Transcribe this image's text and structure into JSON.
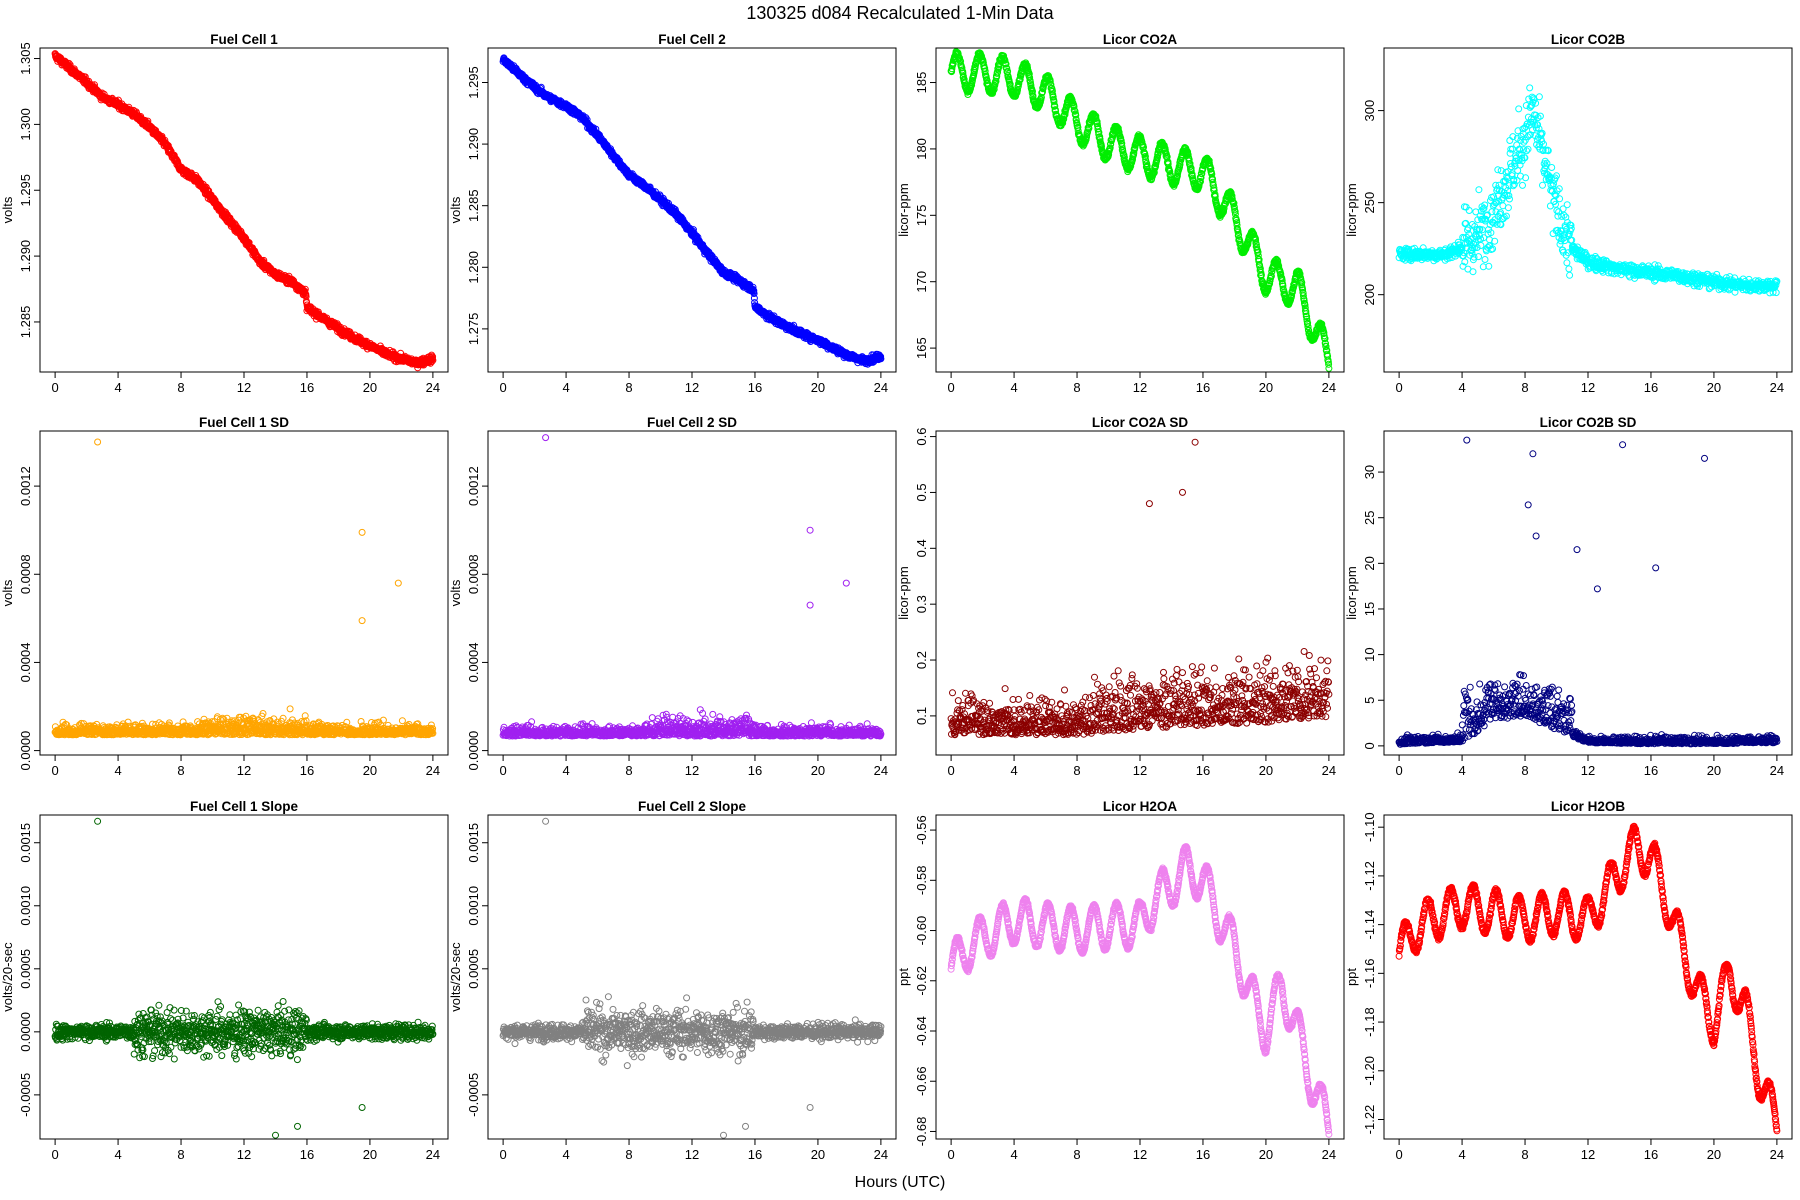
{
  "page": {
    "title": "130325   d084   Recalculated 1-Min Data",
    "x_axis_label": "Hours (UTC)"
  },
  "chart_data": [
    {
      "id": "fc1",
      "type": "scatter",
      "title": "Fuel Cell 1",
      "ylabel": "volts",
      "color": "#FF0000",
      "xlim": [
        -0.96,
        24.96
      ],
      "ylim": [
        1.2812,
        1.3058
      ],
      "x_ticks": [
        0,
        4,
        8,
        12,
        16,
        20,
        24
      ],
      "x_tick_labels": [
        "0",
        "4",
        "8",
        "12",
        "16",
        "20",
        "24"
      ],
      "y_ticks": [
        1.285,
        1.29,
        1.295,
        1.3,
        1.305
      ],
      "y_tick_labels": [
        "1.285",
        "1.290",
        "1.295",
        "1.300",
        "1.305"
      ],
      "series": [
        {
          "name": "Fuel Cell 1",
          "x": [
            0,
            1,
            2,
            3,
            4,
            5,
            6,
            7,
            8,
            9,
            10,
            11,
            12,
            13,
            14,
            15,
            15.9,
            16,
            17,
            18,
            19,
            20,
            21,
            22,
            23,
            24
          ],
          "y": [
            1.3052,
            1.3042,
            1.3032,
            1.3021,
            1.3015,
            1.3008,
            1.2998,
            1.2985,
            1.2966,
            1.2958,
            1.2943,
            1.2928,
            1.2914,
            1.2896,
            1.2886,
            1.2881,
            1.2872,
            1.2861,
            1.2853,
            1.2845,
            1.2838,
            1.2832,
            1.2826,
            1.2822,
            1.2819,
            1.2822
          ]
        }
      ]
    },
    {
      "id": "fc2",
      "type": "scatter",
      "title": "Fuel Cell 2",
      "ylabel": "volts",
      "color": "#0000FF",
      "xlim": [
        -0.96,
        24.96
      ],
      "ylim": [
        1.2715,
        1.2978
      ],
      "x_ticks": [
        0,
        4,
        8,
        12,
        16,
        20,
        24
      ],
      "x_tick_labels": [
        "0",
        "4",
        "8",
        "12",
        "16",
        "20",
        "24"
      ],
      "y_ticks": [
        1.275,
        1.28,
        1.285,
        1.29,
        1.295
      ],
      "y_tick_labels": [
        "1.275",
        "1.280",
        "1.285",
        "1.290",
        "1.295"
      ],
      "series": [
        {
          "name": "Fuel Cell 2",
          "x": [
            0,
            1,
            2,
            3,
            4,
            5,
            6,
            7,
            8,
            9,
            10,
            11,
            12,
            13,
            14,
            15,
            15.9,
            16,
            17,
            18,
            19,
            20,
            21,
            22,
            23,
            24
          ],
          "y": [
            1.2969,
            1.2957,
            1.2946,
            1.2937,
            1.2931,
            1.2922,
            1.2907,
            1.2891,
            1.2875,
            1.2866,
            1.2855,
            1.2843,
            1.2828,
            1.2811,
            1.2796,
            1.2789,
            1.2782,
            1.2768,
            1.2759,
            1.2752,
            1.2746,
            1.2741,
            1.2734,
            1.2728,
            1.2724,
            1.2728
          ]
        }
      ]
    },
    {
      "id": "co2a",
      "type": "scatter",
      "title": "Licor CO2A",
      "ylabel": "licor-ppm",
      "color": "#00EE00",
      "xlim": [
        -0.96,
        24.96
      ],
      "ylim": [
        163.2,
        187.6
      ],
      "x_ticks": [
        0,
        4,
        8,
        12,
        16,
        20,
        24
      ],
      "x_tick_labels": [
        "0",
        "4",
        "8",
        "12",
        "16",
        "20",
        "24"
      ],
      "y_ticks": [
        165,
        170,
        175,
        180,
        185
      ],
      "y_tick_labels": [
        "165",
        "170",
        "175",
        "180",
        "185"
      ],
      "series": [
        {
          "name": "Licor CO2A",
          "x": [
            0,
            2,
            4,
            6,
            8,
            10,
            12,
            14,
            16,
            18,
            20,
            22,
            24
          ],
          "y": [
            185.8,
            185.7,
            185.4,
            184.2,
            182.0,
            180.5,
            179.5,
            178.8,
            178.3,
            174.8,
            170.5,
            169.5,
            164.0
          ]
        }
      ]
    },
    {
      "id": "co2b",
      "type": "scatter",
      "title": "Licor CO2B",
      "ylabel": "licor-ppm",
      "color": "#00FFFF",
      "xlim": [
        -0.96,
        24.96
      ],
      "ylim": [
        158,
        334
      ],
      "x_ticks": [
        0,
        4,
        8,
        12,
        16,
        20,
        24
      ],
      "x_tick_labels": [
        "0",
        "4",
        "8",
        "12",
        "16",
        "20",
        "24"
      ],
      "y_ticks": [
        200,
        250,
        300
      ],
      "y_tick_labels": [
        "200",
        "250",
        "300"
      ],
      "series": [
        {
          "name": "Licor CO2B",
          "x": [
            0,
            2,
            3,
            4,
            5,
            6,
            7,
            8,
            8.5,
            9,
            10,
            11,
            12,
            14,
            16,
            18,
            20,
            22,
            24
          ],
          "y": [
            222,
            222,
            222,
            226,
            232,
            245,
            265,
            285,
            300,
            280,
            245,
            225,
            218,
            214,
            212,
            210,
            207,
            205,
            205
          ]
        }
      ]
    },
    {
      "id": "fc1sd",
      "type": "scatter",
      "title": "Fuel Cell 1 SD",
      "ylabel": "volts",
      "color": "#FFA500",
      "xlim": [
        -0.96,
        24.96
      ],
      "ylim": [
        -2e-05,
        0.00145
      ],
      "x_ticks": [
        0,
        4,
        8,
        12,
        16,
        20,
        24
      ],
      "x_tick_labels": [
        "0",
        "4",
        "8",
        "12",
        "16",
        "20",
        "24"
      ],
      "y_ticks": [
        0,
        0.0004,
        0.0008,
        0.0012
      ],
      "y_tick_labels": [
        "0.0000",
        "0.0004",
        "0.0008",
        "0.0012"
      ],
      "series": [
        {
          "name": "Fuel Cell 1 SD",
          "x": [
            0,
            24
          ],
          "y": [
            0.00013,
            0.00013
          ]
        }
      ],
      "highlights": [
        {
          "x": 2.7,
          "y": 0.0014
        },
        {
          "x": 19.5,
          "y": 0.00099
        },
        {
          "x": 21.8,
          "y": 0.00076
        },
        {
          "x": 19.5,
          "y": 0.00059
        }
      ]
    },
    {
      "id": "fc2sd",
      "type": "scatter",
      "title": "Fuel Cell 2 SD",
      "ylabel": "volts",
      "color": "#A020F0",
      "xlim": [
        -0.96,
        24.96
      ],
      "ylim": [
        -2e-05,
        0.00145
      ],
      "x_ticks": [
        0,
        4,
        8,
        12,
        16,
        20,
        24
      ],
      "x_tick_labels": [
        "0",
        "4",
        "8",
        "12",
        "16",
        "20",
        "24"
      ],
      "y_ticks": [
        0,
        0.0004,
        0.0008,
        0.0012
      ],
      "y_tick_labels": [
        "0.0000",
        "0.0004",
        "0.0008",
        "0.0012"
      ],
      "series": [
        {
          "name": "Fuel Cell 2 SD",
          "x": [
            0,
            24
          ],
          "y": [
            0.00012,
            0.00012
          ]
        }
      ],
      "highlights": [
        {
          "x": 2.7,
          "y": 0.00142
        },
        {
          "x": 19.5,
          "y": 0.001
        },
        {
          "x": 21.8,
          "y": 0.00076
        },
        {
          "x": 19.5,
          "y": 0.00066
        }
      ]
    },
    {
      "id": "co2asd",
      "type": "scatter",
      "title": "Licor CO2A SD",
      "ylabel": "licor-ppm",
      "color": "#8B0000",
      "xlim": [
        -0.96,
        24.96
      ],
      "ylim": [
        0.03,
        0.61
      ],
      "x_ticks": [
        0,
        4,
        8,
        12,
        16,
        20,
        24
      ],
      "x_tick_labels": [
        "0",
        "4",
        "8",
        "12",
        "16",
        "20",
        "24"
      ],
      "y_ticks": [
        0.1,
        0.2,
        0.3,
        0.4,
        0.5,
        0.6
      ],
      "y_tick_labels": [
        "0.1",
        "0.2",
        "0.3",
        "0.4",
        "0.5",
        "0.6"
      ],
      "series": [
        {
          "name": "Licor CO2A SD",
          "x": [
            0,
            4,
            8,
            12,
            16,
            20,
            24
          ],
          "y": [
            0.12,
            0.12,
            0.12,
            0.14,
            0.15,
            0.16,
            0.18
          ]
        }
      ],
      "highlights": [
        {
          "x": 15.5,
          "y": 0.59
        },
        {
          "x": 14.7,
          "y": 0.5
        },
        {
          "x": 12.6,
          "y": 0.48
        }
      ]
    },
    {
      "id": "co2bsd",
      "type": "scatter",
      "title": "Licor CO2B SD",
      "ylabel": "licor-ppm",
      "color": "#000080",
      "xlim": [
        -0.96,
        24.96
      ],
      "ylim": [
        -1.0,
        34.5
      ],
      "x_ticks": [
        0,
        4,
        8,
        12,
        16,
        20,
        24
      ],
      "x_tick_labels": [
        "0",
        "4",
        "8",
        "12",
        "16",
        "20",
        "24"
      ],
      "y_ticks": [
        0,
        5,
        10,
        15,
        20,
        25,
        30
      ],
      "y_tick_labels": [
        "0",
        "5",
        "10",
        "15",
        "20",
        "25",
        "30"
      ],
      "series": [
        {
          "name": "Licor CO2B SD",
          "x": [
            0,
            4,
            6,
            8,
            10,
            12,
            16,
            20,
            24
          ],
          "y": [
            0.3,
            0.8,
            5,
            6,
            3,
            0.6,
            0.4,
            0.4,
            0.6
          ]
        }
      ],
      "highlights": [
        {
          "x": 4.3,
          "y": 33.5
        },
        {
          "x": 14.2,
          "y": 33
        },
        {
          "x": 8.5,
          "y": 32
        },
        {
          "x": 19.4,
          "y": 31.5
        },
        {
          "x": 8.2,
          "y": 26.4
        },
        {
          "x": 8.7,
          "y": 23
        },
        {
          "x": 11.3,
          "y": 21.5
        },
        {
          "x": 16.3,
          "y": 19.5
        },
        {
          "x": 12.6,
          "y": 17.2
        }
      ]
    },
    {
      "id": "fc1slope",
      "type": "scatter",
      "title": "Fuel Cell 1 Slope",
      "ylabel": "volts/20-sec",
      "color": "#006400",
      "xlim": [
        -0.96,
        24.96
      ],
      "ylim": [
        -0.00085,
        0.00172
      ],
      "x_ticks": [
        0,
        4,
        8,
        12,
        16,
        20,
        24
      ],
      "x_tick_labels": [
        "0",
        "4",
        "8",
        "12",
        "16",
        "20",
        "24"
      ],
      "y_ticks": [
        -0.0005,
        0,
        0.0005,
        0.001,
        0.0015
      ],
      "y_tick_labels": [
        "-0.0005",
        "0.0000",
        "0.0005",
        "0.0010",
        "0.0015"
      ],
      "series": [
        {
          "name": "Fuel Cell 1 Slope",
          "x": [
            0,
            24
          ],
          "y": [
            0,
            0
          ]
        }
      ],
      "highlights": [
        {
          "x": 2.7,
          "y": 0.00167
        },
        {
          "x": 14.0,
          "y": -0.00082
        },
        {
          "x": 15.4,
          "y": -0.00075
        },
        {
          "x": 19.5,
          "y": -0.0006
        }
      ]
    },
    {
      "id": "fc2slope",
      "type": "scatter",
      "title": "Fuel Cell 2 Slope",
      "ylabel": "volts/20-sec",
      "color": "#808080",
      "xlim": [
        -0.96,
        24.96
      ],
      "ylim": [
        -0.00085,
        0.00172
      ],
      "x_ticks": [
        0,
        4,
        8,
        12,
        16,
        20,
        24
      ],
      "x_tick_labels": [
        "0",
        "4",
        "8",
        "12",
        "16",
        "20",
        "24"
      ],
      "y_ticks": [
        -0.0005,
        0.0005,
        0.001,
        0.0015
      ],
      "y_tick_labels": [
        "-0.0005",
        "0.0005",
        "0.0010",
        "0.0015"
      ],
      "series": [
        {
          "name": "Fuel Cell 2 Slope",
          "x": [
            0,
            24
          ],
          "y": [
            0,
            0
          ]
        }
      ],
      "highlights": [
        {
          "x": 2.7,
          "y": 0.00167
        },
        {
          "x": 14.0,
          "y": -0.00082
        },
        {
          "x": 15.4,
          "y": -0.00075
        },
        {
          "x": 19.5,
          "y": -0.0006
        }
      ]
    },
    {
      "id": "h2oa",
      "type": "scatter",
      "title": "Licor H2OA",
      "ylabel": "ppt",
      "color": "#EE82EE",
      "xlim": [
        -0.96,
        24.96
      ],
      "ylim": [
        -0.683,
        -0.554
      ],
      "x_ticks": [
        0,
        4,
        8,
        12,
        16,
        20,
        24
      ],
      "x_tick_labels": [
        "0",
        "4",
        "8",
        "12",
        "16",
        "20",
        "24"
      ],
      "y_ticks": [
        -0.68,
        -0.66,
        -0.64,
        -0.62,
        -0.6,
        -0.58,
        -0.56
      ],
      "y_tick_labels": [
        "-0.68",
        "-0.66",
        "-0.64",
        "-0.62",
        "-0.60",
        "-0.58",
        "-0.56"
      ],
      "series": [
        {
          "name": "Licor H2OA",
          "x": [
            0,
            1,
            2,
            4,
            6,
            8,
            10,
            12,
            13,
            14,
            15,
            16,
            17,
            18,
            19,
            20,
            21,
            22,
            23,
            24
          ],
          "y": [
            -0.615,
            -0.607,
            -0.603,
            -0.596,
            -0.598,
            -0.6,
            -0.598,
            -0.598,
            -0.587,
            -0.582,
            -0.575,
            -0.58,
            -0.594,
            -0.607,
            -0.625,
            -0.64,
            -0.622,
            -0.64,
            -0.662,
            -0.678
          ]
        }
      ]
    },
    {
      "id": "h2ob",
      "type": "scatter",
      "title": "Licor H2OB",
      "ylabel": "ppt",
      "color": "#FF0000",
      "xlim": [
        -0.96,
        24.96
      ],
      "ylim": [
        -1.228,
        -1.095
      ],
      "x_ticks": [
        0,
        4,
        8,
        12,
        16,
        20,
        24
      ],
      "x_tick_labels": [
        "0",
        "4",
        "8",
        "12",
        "16",
        "20",
        "24"
      ],
      "y_ticks": [
        -1.22,
        -1.2,
        -1.18,
        -1.16,
        -1.14,
        -1.12,
        -1.1
      ],
      "y_tick_labels": [
        "-1.22",
        "-1.20",
        "-1.18",
        "-1.16",
        "-1.14",
        "-1.12",
        "-1.10"
      ],
      "series": [
        {
          "name": "Licor H2OB",
          "x": [
            0,
            1,
            2,
            4,
            6,
            8,
            10,
            12,
            13,
            14,
            15,
            16,
            17,
            18,
            19,
            20,
            21,
            22,
            23,
            24
          ],
          "y": [
            -1.152,
            -1.142,
            -1.138,
            -1.132,
            -1.135,
            -1.138,
            -1.135,
            -1.138,
            -1.128,
            -1.118,
            -1.108,
            -1.112,
            -1.13,
            -1.15,
            -1.168,
            -1.18,
            -1.16,
            -1.175,
            -1.205,
            -1.222
          ]
        }
      ]
    }
  ]
}
